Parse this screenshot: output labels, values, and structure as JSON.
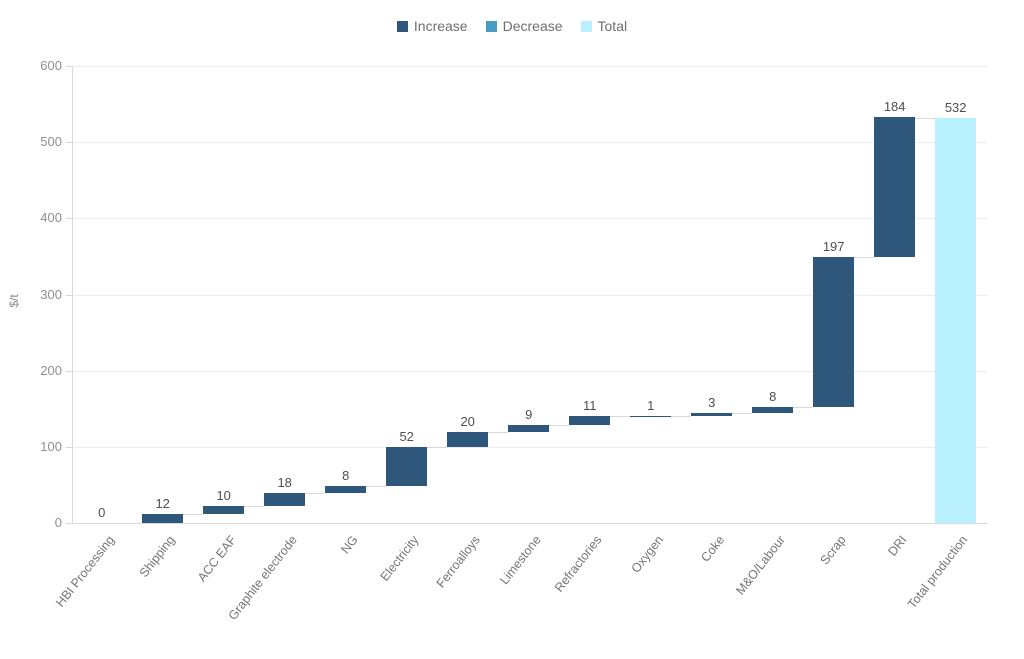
{
  "chart_data": {
    "type": "bar",
    "subtype": "waterfall",
    "title": "",
    "xlabel": "",
    "ylabel": "$/t",
    "ylim": [
      0,
      600
    ],
    "yticks": [
      0,
      100,
      200,
      300,
      400,
      500,
      600
    ],
    "grid": true,
    "legend_position": "top",
    "legend": [
      {
        "label": "Increase",
        "color": "#2e577b"
      },
      {
        "label": "Decrease",
        "color": "#4a9cc6"
      },
      {
        "label": "Total",
        "color": "#b8f0fd"
      }
    ],
    "categories": [
      "HBI Processing",
      "Shipping",
      "ACC EAF",
      "Graphite electrode",
      "NG",
      "Electricity",
      "Ferroalloys",
      "Limestone",
      "Refractories",
      "Oxygen",
      "Coke",
      "M&O/Labour",
      "Scrap",
      "DRI",
      "Total production"
    ],
    "values": [
      0,
      12,
      10,
      18,
      8,
      52,
      20,
      9,
      11,
      1,
      3,
      8,
      197,
      184,
      532
    ],
    "bar_types": [
      "increase",
      "increase",
      "increase",
      "increase",
      "increase",
      "increase",
      "increase",
      "increase",
      "increase",
      "increase",
      "increase",
      "increase",
      "increase",
      "increase",
      "total"
    ],
    "data_labels": [
      "0",
      "12",
      "10",
      "18",
      "8",
      "52",
      "20",
      "9",
      "11",
      "1",
      "3",
      "8",
      "197",
      "184",
      "532"
    ]
  },
  "colors": {
    "increase": "#2e577b",
    "decrease": "#4a9cc6",
    "total": "#b8f0fd",
    "gridline": "#ececec",
    "axis": "#d9d9d9",
    "connector": "#d9d9d9"
  }
}
